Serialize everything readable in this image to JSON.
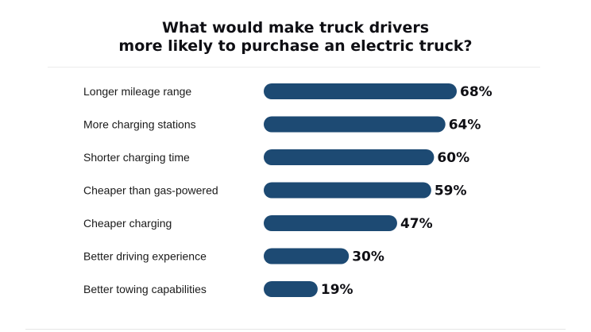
{
  "colors": {
    "bar": "#1d4a73",
    "text": "#1a1a1a",
    "title": "#0f0f14"
  },
  "chart_data": {
    "type": "bar",
    "orientation": "horizontal",
    "title_lines": [
      "What would make truck drivers",
      "more likely to purchase an electric truck?"
    ],
    "categories": [
      "Longer mileage range",
      "More charging stations",
      "Shorter charging time",
      "Cheaper than gas-powered",
      "Cheaper charging",
      "Better driving experience",
      "Better towing capabilities"
    ],
    "values": [
      68,
      64,
      60,
      59,
      47,
      30,
      19
    ],
    "value_labels": [
      "68%",
      "64%",
      "60%",
      "59%",
      "47%",
      "30%",
      "19%"
    ],
    "unit": "%",
    "xlim": [
      0,
      68
    ],
    "grid": false,
    "legend": "none"
  }
}
